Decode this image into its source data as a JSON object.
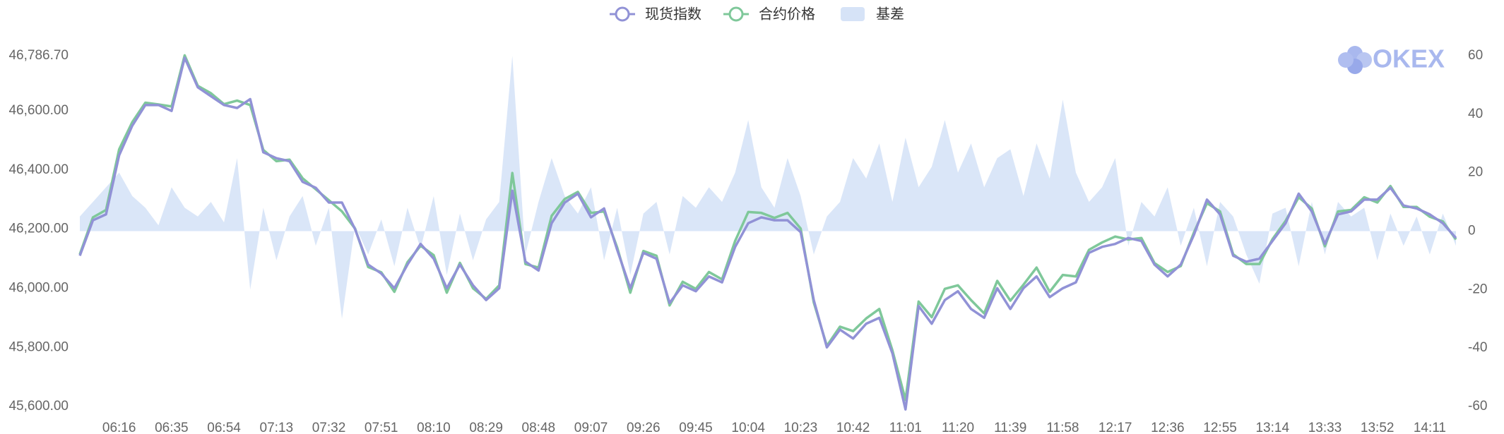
{
  "chart_data": {
    "type": "line",
    "watermark": "OKEX",
    "categories": [
      null,
      null,
      null,
      "06:16",
      null,
      null,
      null,
      "06:35",
      null,
      null,
      null,
      "06:54",
      null,
      null,
      null,
      "07:13",
      null,
      null,
      null,
      "07:32",
      null,
      null,
      null,
      "07:51",
      null,
      null,
      null,
      "08:10",
      null,
      null,
      null,
      "08:29",
      null,
      null,
      null,
      "08:48",
      null,
      null,
      null,
      "09:07",
      null,
      null,
      null,
      "09:26",
      null,
      null,
      null,
      "09:45",
      null,
      null,
      null,
      "10:04",
      null,
      null,
      null,
      "10:23",
      null,
      null,
      null,
      "10:42",
      null,
      null,
      null,
      "11:01",
      null,
      null,
      null,
      "11:20",
      null,
      null,
      null,
      "11:39",
      null,
      null,
      null,
      "11:58",
      null,
      null,
      null,
      "12:17",
      null,
      null,
      null,
      "12:36",
      null,
      null,
      null,
      "12:55",
      null,
      null,
      null,
      "13:14",
      null,
      null,
      null,
      "13:33",
      null,
      null,
      null,
      "13:52",
      null,
      null,
      null,
      "14:11",
      null,
      null
    ],
    "ylim": [
      45600,
      46786.7
    ],
    "yticks": [
      {
        "value": 45600,
        "label": "45,600.00"
      },
      {
        "value": 45800,
        "label": "45,800.00"
      },
      {
        "value": 46000,
        "label": "46,000.00"
      },
      {
        "value": 46200,
        "label": "46,200.00"
      },
      {
        "value": 46400,
        "label": "46,400.00"
      },
      {
        "value": 46600,
        "label": "46,600.00"
      },
      {
        "value": 46786.7,
        "label": "46,786.70"
      }
    ],
    "y2lim": [
      -60,
      60
    ],
    "y2ticks": [
      -60,
      -40,
      -20,
      0,
      20,
      40,
      60
    ],
    "series": [
      {
        "name": "现货指数",
        "color": "#9192d6",
        "values": [
          46110,
          46230,
          46250,
          46450,
          46550,
          46620,
          46620,
          46600,
          46780,
          46680,
          46650,
          46620,
          46610,
          46640,
          46460,
          46440,
          46430,
          46360,
          46340,
          46290,
          46290,
          46200,
          46080,
          46050,
          46000,
          46080,
          46150,
          46100,
          46000,
          46080,
          46010,
          45960,
          46000,
          46330,
          46090,
          46060,
          46220,
          46290,
          46320,
          46240,
          46270,
          46130,
          46000,
          46120,
          46100,
          45950,
          46010,
          45990,
          46040,
          46020,
          46140,
          46220,
          46240,
          46230,
          46230,
          46190,
          45960,
          45800,
          45860,
          45830,
          45880,
          45900,
          45780,
          45590,
          45940,
          45880,
          45960,
          45990,
          45930,
          45900,
          46000,
          45930,
          46000,
          46040,
          45970,
          46000,
          46020,
          46120,
          46140,
          46150,
          46170,
          46160,
          46080,
          46040,
          46080,
          46180,
          46300,
          46250,
          46110,
          46090,
          46100,
          46160,
          46220,
          46320,
          46260,
          46150,
          46250,
          46260,
          46300,
          46300,
          46340,
          46280,
          46270,
          46250,
          46220,
          46170
        ]
      },
      {
        "name": "合约价格",
        "color": "#7fc89a",
        "values": [
          46115,
          46240,
          46265,
          46470,
          46562,
          46628,
          46622,
          46615,
          46788,
          46685,
          46660,
          46623,
          46635,
          46620,
          46468,
          46430,
          46435,
          46372,
          46335,
          46298,
          46260,
          46202,
          46072,
          46054,
          45988,
          46088,
          46144,
          46112,
          45985,
          46086,
          46000,
          45964,
          46010,
          46390,
          46082,
          46070,
          46245,
          46302,
          46326,
          46255,
          46260,
          46138,
          45985,
          46126,
          46110,
          45942,
          46022,
          45998,
          46055,
          46030,
          46160,
          46258,
          46255,
          46238,
          46255,
          46202,
          45952,
          45805,
          45870,
          45855,
          45898,
          45930,
          45790,
          45622,
          45955,
          45902,
          45998,
          46010,
          45960,
          45915,
          46025,
          45958,
          46012,
          46070,
          45988,
          46045,
          46040,
          46130,
          46155,
          46175,
          46165,
          46170,
          46085,
          46055,
          46075,
          46188,
          46288,
          46260,
          46115,
          46082,
          46082,
          46166,
          46228,
          46308,
          46270,
          46142,
          46260,
          46265,
          46308,
          46290,
          46346,
          46275,
          46275,
          46242,
          46226,
          46165
        ]
      },
      {
        "name": "基差",
        "color": "#d6e3f7",
        "axis": "y2",
        "values": [
          5,
          10,
          15,
          20,
          12,
          8,
          2,
          15,
          8,
          5,
          10,
          3,
          25,
          -20,
          8,
          -10,
          5,
          12,
          -5,
          8,
          -30,
          2,
          -8,
          4,
          -12,
          8,
          -6,
          12,
          -15,
          6,
          -10,
          4,
          10,
          60,
          -8,
          10,
          25,
          12,
          6,
          15,
          -10,
          8,
          -15,
          6,
          10,
          -8,
          12,
          8,
          15,
          10,
          20,
          38,
          15,
          8,
          25,
          12,
          -8,
          5,
          10,
          25,
          18,
          30,
          10,
          32,
          15,
          22,
          38,
          20,
          30,
          15,
          25,
          28,
          12,
          30,
          18,
          45,
          20,
          10,
          15,
          25,
          -5,
          10,
          5,
          15,
          -5,
          8,
          -12,
          10,
          5,
          -8,
          -18,
          6,
          8,
          -12,
          10,
          -8,
          10,
          5,
          8,
          -10,
          6,
          -5,
          5,
          -8,
          6,
          -5
        ]
      }
    ]
  }
}
